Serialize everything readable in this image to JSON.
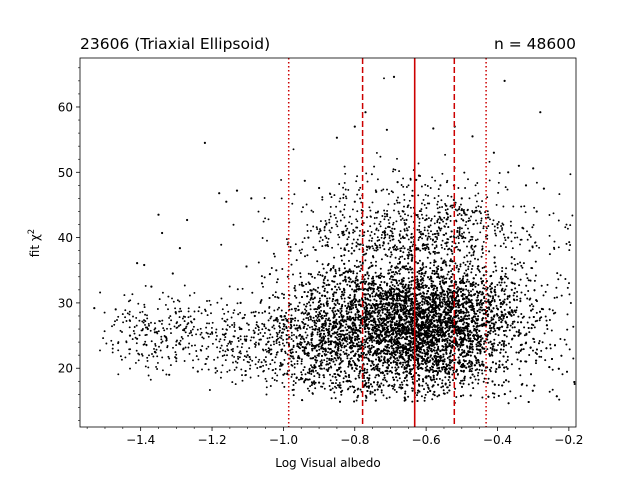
{
  "chart_data": {
    "type": "scatter",
    "title_left": "23606 (Triaxial Ellipsoid)",
    "title_right": "n = 48600",
    "xlabel": "Log Visual albedo",
    "ylabel": "fit χ",
    "ylabel_sup": "2",
    "xlim": [
      -1.57,
      -0.18
    ],
    "ylim": [
      11,
      67.5
    ],
    "x_ticks": [
      -1.4,
      -1.2,
      -1.0,
      -0.8,
      -0.6,
      -0.4,
      -0.2
    ],
    "x_tick_labels": [
      "−1.4",
      "−1.2",
      "−1.0",
      "−0.8",
      "−0.6",
      "−0.4",
      "−0.2"
    ],
    "y_ticks": [
      20,
      30,
      40,
      50,
      60
    ],
    "y_tick_labels": [
      "20",
      "30",
      "40",
      "50",
      "60"
    ],
    "point_color": "#000000",
    "reference_lines": [
      {
        "x": -0.985,
        "style": "dotted",
        "color": "#cc0000"
      },
      {
        "x": -0.778,
        "style": "dashed",
        "color": "#cc0000"
      },
      {
        "x": -0.632,
        "style": "solid",
        "color": "#cc0000"
      },
      {
        "x": -0.521,
        "style": "dashed",
        "color": "#cc0000"
      },
      {
        "x": -0.432,
        "style": "dotted",
        "color": "#cc0000"
      }
    ],
    "cloud": {
      "center_x": -0.63,
      "center_y": 25.5,
      "x_spread": 0.14,
      "y_spread": 4.2,
      "core_min_y": 14.5,
      "tail_x_start": -1.53,
      "tail_y_range": [
        17,
        36
      ]
    },
    "sample_points": [
      [
        -1.53,
        29.2
      ],
      [
        -1.47,
        29.0
      ],
      [
        -1.41,
        36.1
      ],
      [
        -1.39,
        35.8
      ],
      [
        -1.37,
        32.5
      ],
      [
        -1.35,
        43.5
      ],
      [
        -1.34,
        40.7
      ],
      [
        -1.33,
        24.8
      ],
      [
        -1.31,
        34.5
      ],
      [
        -1.29,
        38.4
      ],
      [
        -1.27,
        42.7
      ],
      [
        -1.22,
        54.5
      ],
      [
        -1.18,
        46.8
      ],
      [
        -1.16,
        45.5
      ],
      [
        -1.13,
        47.2
      ],
      [
        -1.09,
        46.0
      ],
      [
        -0.94,
        48.7
      ],
      [
        -0.9,
        47.6
      ],
      [
        -0.85,
        55.3
      ],
      [
        -0.8,
        57.0
      ],
      [
        -0.77,
        59.2
      ],
      [
        -0.71,
        56.5
      ],
      [
        -0.69,
        64.6
      ],
      [
        -0.58,
        56.7
      ],
      [
        -0.52,
        57.0
      ],
      [
        -0.47,
        55.5
      ],
      [
        -0.38,
        64.0
      ],
      [
        -0.34,
        51.0
      ],
      [
        -0.3,
        50.6
      ],
      [
        -0.27,
        47.5
      ],
      [
        -0.28,
        59.2
      ],
      [
        -0.41,
        53.0
      ],
      [
        -0.37,
        50.0
      ],
      [
        -0.32,
        48.0
      ],
      [
        -0.29,
        44.0
      ],
      [
        -0.33,
        41.5
      ],
      [
        -0.31,
        38.0
      ],
      [
        -0.35,
        35.0
      ],
      [
        -0.36,
        32.0
      ],
      [
        -0.39,
        30.0
      ],
      [
        -0.44,
        23.0
      ],
      [
        -0.5,
        20.5
      ],
      [
        -0.62,
        17.5
      ],
      [
        -0.66,
        15.5
      ],
      [
        -0.58,
        16.0
      ],
      [
        -0.75,
        16.3
      ],
      [
        -0.84,
        17.0
      ],
      [
        -0.9,
        17.8
      ],
      [
        -0.95,
        18.5
      ],
      [
        -1.0,
        19.0
      ],
      [
        -1.05,
        21.0
      ],
      [
        -1.1,
        22.0
      ],
      [
        -1.15,
        24.0
      ],
      [
        -1.2,
        25.5
      ],
      [
        -1.25,
        27.5
      ],
      [
        -1.28,
        23.0
      ],
      [
        -1.3,
        21.5
      ],
      [
        -1.32,
        19.0
      ],
      [
        -1.36,
        25.5
      ],
      [
        -1.38,
        26.0
      ],
      [
        -1.41,
        24.5
      ],
      [
        -1.43,
        25.0
      ],
      [
        -1.36,
        22.5
      ],
      [
        -1.24,
        19.5
      ],
      [
        -1.19,
        20.0
      ],
      [
        -1.12,
        30.0
      ],
      [
        -1.08,
        28.0
      ],
      [
        -1.06,
        33.0
      ],
      [
        -1.02,
        35.0
      ],
      [
        -0.98,
        38.0
      ],
      [
        -0.93,
        40.0
      ],
      [
        -0.88,
        42.0
      ],
      [
        -0.84,
        44.0
      ],
      [
        -0.8,
        45.5
      ],
      [
        -0.74,
        47.0
      ],
      [
        -0.68,
        48.5
      ],
      [
        -0.62,
        49.5
      ],
      [
        -0.56,
        48.0
      ],
      [
        -0.5,
        46.0
      ],
      [
        -0.45,
        44.0
      ],
      [
        -0.4,
        42.0
      ],
      [
        -0.37,
        40.0
      ],
      [
        -0.36,
        37.0
      ],
      [
        -0.39,
        34.0
      ],
      [
        -0.42,
        31.0
      ]
    ]
  }
}
